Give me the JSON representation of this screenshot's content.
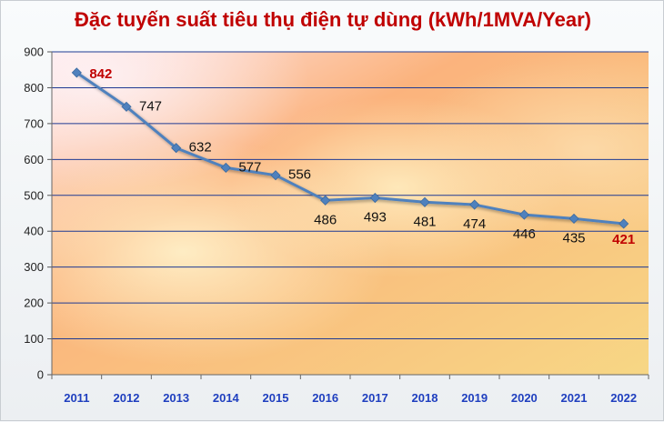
{
  "chart_data": {
    "type": "line",
    "title": "Đặc tuyến suất tiêu thụ điện tự dùng (kWh/1MVA/Year)",
    "xlabel": "",
    "ylabel": "",
    "ylim": [
      0,
      900
    ],
    "yticks": [
      "0",
      "100",
      "200",
      "300",
      "400",
      "500",
      "600",
      "700",
      "800",
      "900"
    ],
    "categories": [
      "2011",
      "2012",
      "2013",
      "2014",
      "2015",
      "2016",
      "2017",
      "2018",
      "2019",
      "2020",
      "2021",
      "2022"
    ],
    "series": [
      {
        "values": [
          842,
          747,
          632,
          577,
          556,
          486,
          493,
          481,
          474,
          446,
          435,
          421
        ],
        "color": "#4f81bd"
      }
    ],
    "data_labels": [
      "842",
      "747",
      "632",
      "577",
      "556",
      "486",
      "493",
      "481",
      "474",
      "446",
      "435",
      "421"
    ],
    "highlight_color": "#c00000",
    "highlight_indices": [
      0,
      11
    ],
    "grid": true,
    "legend": "none",
    "colors": {
      "title": "#c00000",
      "x_tick": "#1f3fbf",
      "line": "#4f81bd",
      "gridline": "#1f3a93"
    }
  }
}
